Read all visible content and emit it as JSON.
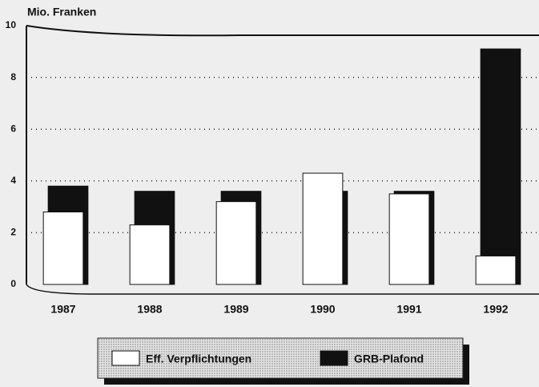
{
  "chart_data": {
    "type": "bar",
    "ylabel": "Mio. Franken",
    "categories": [
      "1987",
      "1988",
      "1989",
      "1990",
      "1991",
      "1992"
    ],
    "series": [
      {
        "name": "Eff. Verpflichtungen",
        "color": "#ffffff",
        "values": [
          2.8,
          2.3,
          3.2,
          4.3,
          3.5,
          1.1
        ]
      },
      {
        "name": "GRB-Plafond",
        "color": "#111111",
        "values": [
          3.8,
          3.6,
          3.6,
          3.6,
          3.6,
          9.1
        ]
      }
    ],
    "ylim": [
      0,
      10
    ],
    "yticks": [
      0,
      2,
      4,
      6,
      8,
      10
    ],
    "grid": true
  }
}
